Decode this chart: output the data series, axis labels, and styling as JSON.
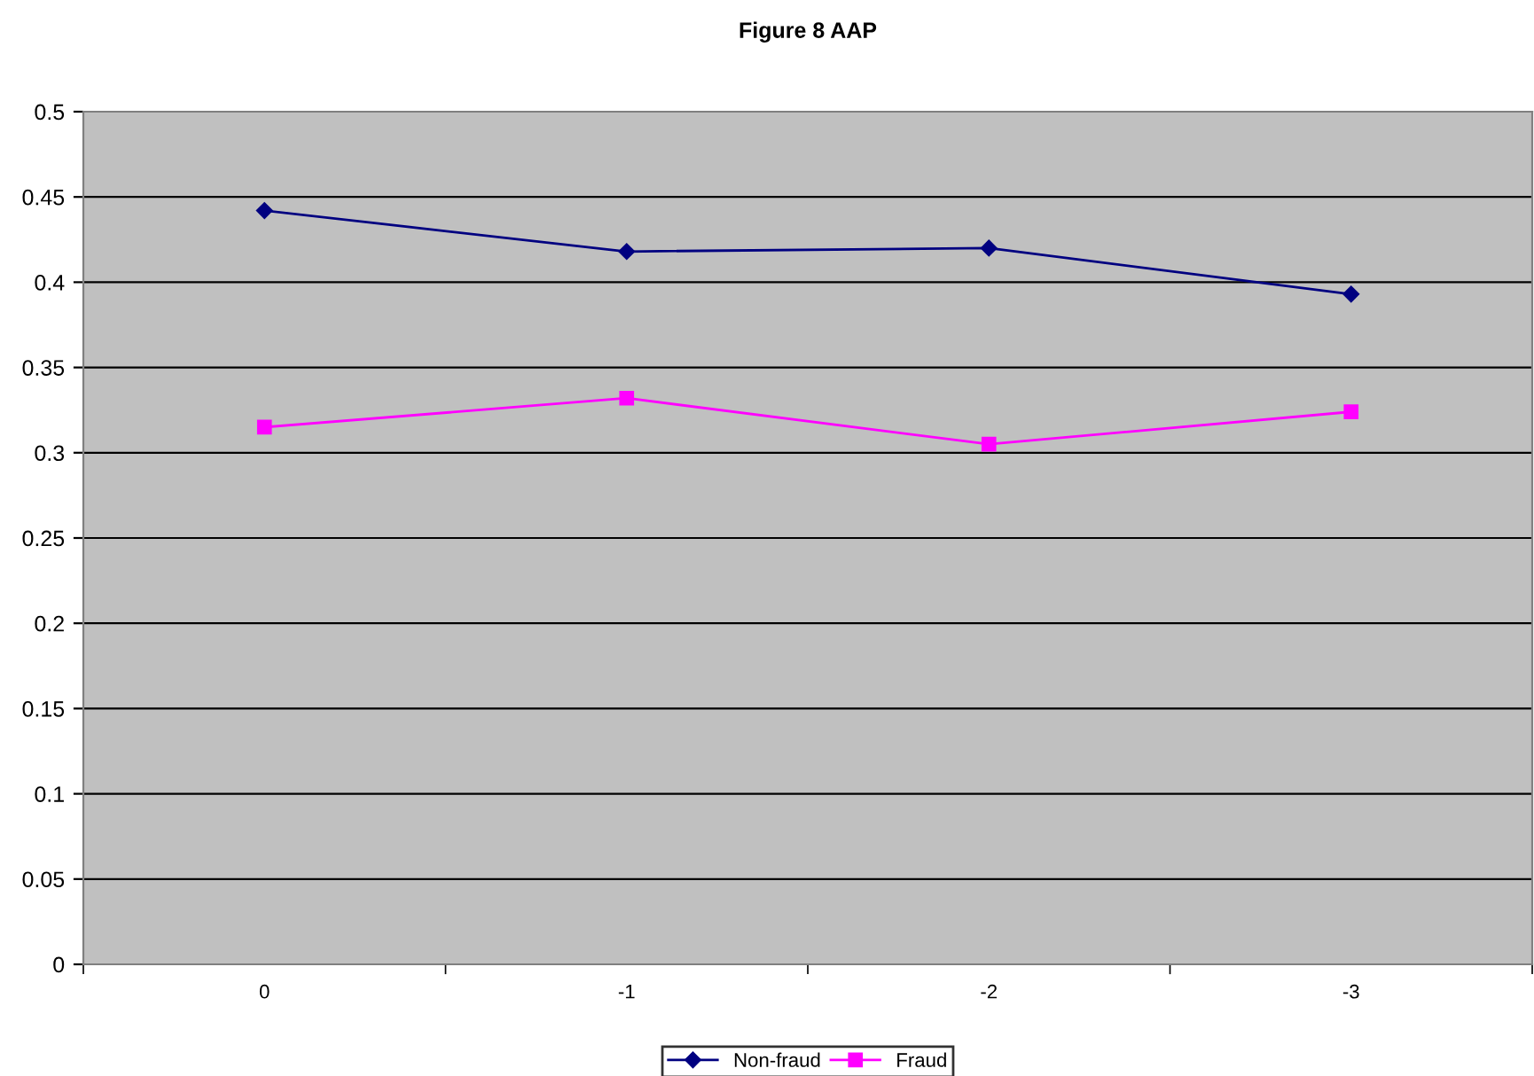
{
  "chart_data": {
    "type": "line",
    "title": "Figure 8 AAP",
    "categories": [
      "0",
      "-1",
      "-2",
      "-3"
    ],
    "series": [
      {
        "name": "Non-fraud",
        "color": "#000080",
        "values": [
          0.442,
          0.418,
          0.42,
          0.393
        ],
        "marker": "diamond"
      },
      {
        "name": "Fraud",
        "color": "#ff00ff",
        "values": [
          0.315,
          0.332,
          0.305,
          0.324
        ],
        "marker": "square"
      }
    ],
    "ylim": [
      0,
      0.5
    ],
    "yticks": [
      0,
      0.05,
      0.1,
      0.15,
      0.2,
      0.25,
      0.3,
      0.35,
      0.4,
      0.45,
      0.5
    ],
    "grid": "y",
    "legend": "bottom",
    "line_style": "solid"
  }
}
